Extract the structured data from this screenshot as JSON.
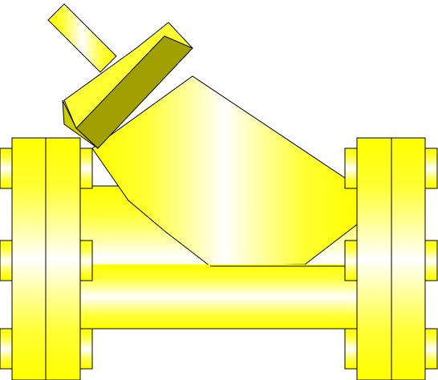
{
  "diagram": {
    "subject": "y-strainer-valve",
    "colors": {
      "yellow": "#ffff00",
      "yellow_mid": "#ffff55",
      "yellow_light": "#ffffaa",
      "white": "#ffffff",
      "olive": "#a0a000",
      "outline": "#000000"
    }
  }
}
